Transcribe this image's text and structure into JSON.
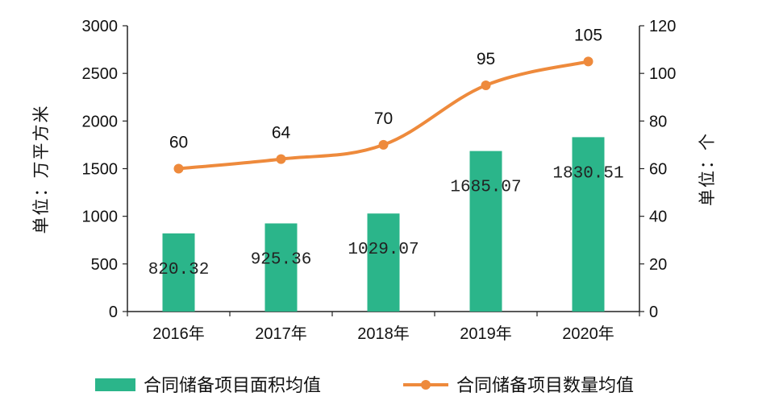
{
  "chart_data": {
    "type": "bar",
    "categories": [
      "2016年",
      "2017年",
      "2018年",
      "2019年",
      "2020年"
    ],
    "series": [
      {
        "name": "合同储备项目面积均值",
        "type": "bar",
        "axis": "left",
        "values": [
          820.32,
          925.36,
          1029.07,
          1685.07,
          1830.51
        ],
        "labels": [
          "820.32",
          "925.36",
          "1029.07",
          "1685.07",
          "1830.51"
        ],
        "color": "#2bb58a"
      },
      {
        "name": "合同储备项目数量均值",
        "type": "line",
        "axis": "right",
        "values": [
          60,
          64,
          70,
          95,
          105
        ],
        "labels": [
          "60",
          "64",
          "70",
          "95",
          "105"
        ],
        "color": "#ee8a3c"
      }
    ],
    "ylabel": "单位：万平方米",
    "y2label": "单位：个",
    "ylim": [
      0,
      3000
    ],
    "y2lim": [
      0,
      120
    ],
    "yticks": [
      "0",
      "500",
      "1000",
      "1500",
      "2000",
      "2500",
      "3000"
    ],
    "y2ticks": [
      "0",
      "20",
      "40",
      "60",
      "80",
      "100",
      "120"
    ],
    "grid": false,
    "legend_position": "bottom"
  }
}
